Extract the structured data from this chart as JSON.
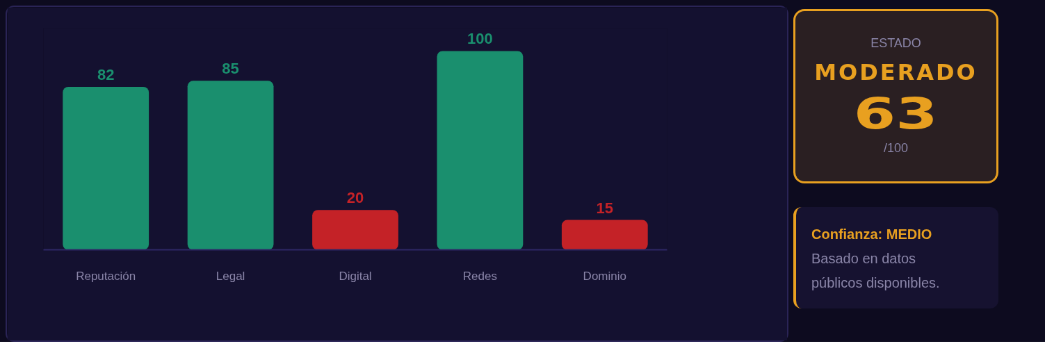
{
  "chart_data": [
    {
      "type": "bar",
      "categories": [
        "Reputación",
        "Legal",
        "Digital",
        "Redes",
        "Dominio"
      ],
      "values": [
        82,
        85,
        20,
        100,
        15
      ],
      "colors": [
        "#1a8f6e",
        "#1a8f6e",
        "#c42227",
        "#1a8f6e",
        "#c42227"
      ],
      "data_labels": true
    },
    {
      "type": "other",
      "annotations": [
        "ESTADO",
        "MODERADO",
        "63",
        "/100"
      ]
    },
    {
      "type": "other",
      "annotations": [
        "Confianza: MEDIO",
        "Basado en datos públicos disponibles."
      ]
    }
  ]
}
